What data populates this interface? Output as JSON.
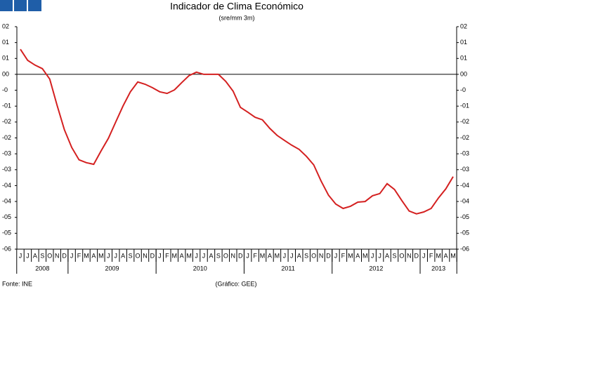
{
  "chart_data": {
    "type": "line",
    "title": "Indicador de Clima Económico",
    "subtitle": "(sre/mm 3m)",
    "source": "Fonte: INE",
    "credit": "(Gráfico: GEE)",
    "categories": [
      "J",
      "J",
      "A",
      "S",
      "O",
      "N",
      "D",
      "J",
      "F",
      "M",
      "A",
      "M",
      "J",
      "J",
      "A",
      "S",
      "O",
      "N",
      "D",
      "J",
      "F",
      "M",
      "A",
      "M",
      "J",
      "J",
      "A",
      "S",
      "O",
      "N",
      "D",
      "J",
      "F",
      "M",
      "A",
      "M",
      "J",
      "J",
      "A",
      "S",
      "O",
      "N",
      "D",
      "J",
      "F",
      "M",
      "A",
      "M",
      "J",
      "J",
      "A",
      "S",
      "O",
      "N",
      "D",
      "J",
      "F",
      "M",
      "A",
      "M"
    ],
    "x_groups": [
      {
        "label": "2008",
        "count": 7
      },
      {
        "label": "2009",
        "count": 12
      },
      {
        "label": "2010",
        "count": 12
      },
      {
        "label": "2011",
        "count": 12
      },
      {
        "label": "2012",
        "count": 12
      },
      {
        "label": "2013",
        "count": 5
      }
    ],
    "series": [
      {
        "name": "Indicador de Clima Económico",
        "color": "#d42020",
        "values": [
          0.79,
          0.44,
          0.29,
          0.18,
          -0.15,
          -0.97,
          -1.74,
          -2.3,
          -2.69,
          -2.78,
          -2.83,
          -2.41,
          -2.01,
          -1.5,
          -0.99,
          -0.55,
          -0.24,
          -0.31,
          -0.42,
          -0.55,
          -0.6,
          -0.49,
          -0.26,
          -0.04,
          0.07,
          0,
          0,
          0,
          -0.22,
          -0.53,
          -1.04,
          -1.19,
          -1.35,
          -1.43,
          -1.7,
          -1.92,
          -2.08,
          -2.23,
          -2.36,
          -2.58,
          -2.85,
          -3.36,
          -3.8,
          -4.08,
          -4.22,
          -4.15,
          -4.02,
          -4,
          -3.82,
          -3.75,
          -3.44,
          -3.62,
          -3.97,
          -4.3,
          -4.39,
          -4.33,
          -4.22,
          -3.89,
          -3.6,
          -3.22
        ]
      }
    ],
    "ylim": [
      -5.5,
      1.5
    ],
    "yticks": [
      {
        "value": 1.5,
        "label": "02"
      },
      {
        "value": 1,
        "label": "01"
      },
      {
        "value": 0.5,
        "label": "01"
      },
      {
        "value": 0,
        "label": "00"
      },
      {
        "value": -0.5,
        "label": "-0"
      },
      {
        "value": -1,
        "label": "-01"
      },
      {
        "value": -1.5,
        "label": "-02"
      },
      {
        "value": -2,
        "label": "-02"
      },
      {
        "value": -2.5,
        "label": "-03"
      },
      {
        "value": -3,
        "label": "-03"
      },
      {
        "value": -3.5,
        "label": "-04"
      },
      {
        "value": -4,
        "label": "-04"
      },
      {
        "value": -4.5,
        "label": "-05"
      },
      {
        "value": -5,
        "label": "-05"
      },
      {
        "value": -5.5,
        "label": "-06"
      }
    ]
  }
}
